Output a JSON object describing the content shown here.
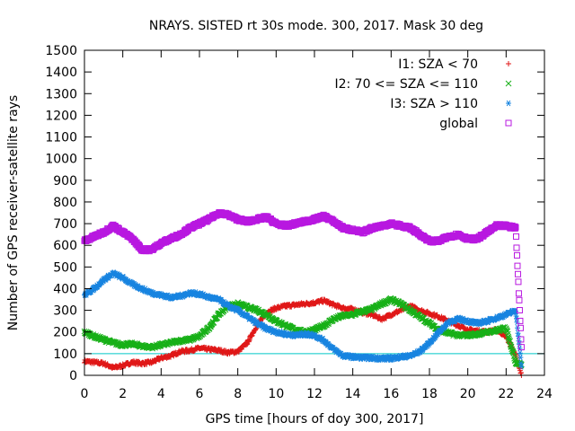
{
  "chart_data": {
    "type": "scatter",
    "title": "NRAYS. SISTED rt 30s mode. 300, 2017. Mask 30 deg",
    "xlabel": "GPS time [hours of doy 300, 2017]",
    "ylabel": "Number of GPS receiver-satellite rays",
    "xlim": [
      0,
      24
    ],
    "ylim": [
      0,
      1500
    ],
    "xticks": [
      "0",
      "2",
      "4",
      "6",
      "8",
      "10",
      "12",
      "14",
      "16",
      "18",
      "20",
      "22",
      "24"
    ],
    "yticks": [
      "0",
      "100",
      "200",
      "300",
      "400",
      "500",
      "600",
      "700",
      "800",
      "900",
      "1000",
      "1100",
      "1200",
      "1300",
      "1400",
      "1500"
    ],
    "grid": false,
    "legend_position": "top-right",
    "reference_line": {
      "y": 100,
      "color": "#00c8c8"
    },
    "series": [
      {
        "name": "I1: SZA < 70",
        "marker": "+",
        "color": "#e01818",
        "x": [
          0,
          0.5,
          1,
          1.5,
          2,
          2.5,
          3,
          3.5,
          4,
          4.5,
          5,
          5.5,
          6,
          6.5,
          7,
          7.5,
          8,
          8.5,
          9,
          9.5,
          10,
          10.5,
          11,
          11.5,
          12,
          12.5,
          13,
          13.5,
          14,
          14.5,
          15,
          15.5,
          16,
          16.5,
          17,
          17.5,
          18,
          18.5,
          19,
          19.5,
          20,
          20.5,
          21,
          21.5,
          22,
          22.5,
          22.8
        ],
        "y": [
          65,
          60,
          55,
          35,
          45,
          60,
          55,
          60,
          80,
          90,
          110,
          115,
          125,
          120,
          115,
          105,
          110,
          150,
          230,
          290,
          310,
          320,
          325,
          330,
          335,
          345,
          325,
          310,
          305,
          290,
          280,
          260,
          280,
          300,
          320,
          300,
          285,
          270,
          250,
          230,
          210,
          205,
          200,
          210,
          180,
          90,
          0
        ]
      },
      {
        "name": "I2: 70 <= SZA <= 110",
        "marker": "x",
        "color": "#18b018",
        "x": [
          0,
          0.5,
          1,
          1.5,
          2,
          2.5,
          3,
          3.5,
          4,
          4.5,
          5,
          5.5,
          6,
          6.5,
          7,
          7.5,
          8,
          8.5,
          9,
          9.5,
          10,
          10.5,
          11,
          11.5,
          12,
          12.5,
          13,
          13.5,
          14,
          14.5,
          15,
          15.5,
          16,
          16.5,
          17,
          17.5,
          18,
          18.5,
          19,
          19.5,
          20,
          20.5,
          21,
          21.5,
          22,
          22.5,
          22.8
        ],
        "y": [
          200,
          180,
          165,
          150,
          140,
          145,
          135,
          130,
          140,
          150,
          160,
          165,
          180,
          220,
          280,
          320,
          330,
          315,
          300,
          280,
          250,
          230,
          210,
          200,
          210,
          230,
          260,
          275,
          280,
          295,
          305,
          330,
          350,
          330,
          300,
          270,
          240,
          210,
          195,
          185,
          185,
          190,
          200,
          205,
          220,
          60,
          50
        ]
      },
      {
        "name": "I3: SZA > 110",
        "marker": "*",
        "color": "#1884e0",
        "x": [
          0,
          0.5,
          1,
          1.5,
          2,
          2.5,
          3,
          3.5,
          4,
          4.5,
          5,
          5.5,
          6,
          6.5,
          7,
          7.5,
          8,
          8.5,
          9,
          9.5,
          10,
          10.5,
          11,
          11.5,
          12,
          12.5,
          13,
          13.5,
          14,
          14.5,
          15,
          15.5,
          16,
          16.5,
          17,
          17.5,
          18,
          18.5,
          19,
          19.5,
          20,
          20.5,
          21,
          21.5,
          22,
          22.5,
          22.8
        ],
        "y": [
          370,
          400,
          440,
          470,
          450,
          420,
          400,
          380,
          370,
          360,
          365,
          380,
          375,
          360,
          350,
          320,
          300,
          270,
          240,
          215,
          200,
          190,
          185,
          190,
          185,
          160,
          120,
          90,
          85,
          82,
          80,
          78,
          78,
          85,
          90,
          110,
          150,
          200,
          245,
          260,
          250,
          240,
          250,
          265,
          280,
          300,
          40
        ]
      },
      {
        "name": "global",
        "marker": "square",
        "color": "#b818e0",
        "x": [
          0,
          0.5,
          1,
          1.5,
          2,
          2.5,
          3,
          3.5,
          4,
          4.5,
          5,
          5.5,
          6,
          6.5,
          7,
          7.5,
          8,
          8.5,
          9,
          9.5,
          10,
          10.5,
          11,
          11.5,
          12,
          12.5,
          13,
          13.5,
          14,
          14.5,
          15,
          15.5,
          16,
          16.5,
          17,
          17.5,
          18,
          18.5,
          19,
          19.5,
          20,
          20.5,
          21,
          21.5,
          22,
          22.5,
          22.8
        ],
        "y": [
          620,
          640,
          660,
          690,
          660,
          630,
          580,
          580,
          610,
          630,
          650,
          680,
          700,
          720,
          750,
          740,
          720,
          710,
          720,
          730,
          700,
          690,
          700,
          710,
          720,
          735,
          710,
          680,
          670,
          660,
          680,
          690,
          700,
          690,
          680,
          650,
          620,
          620,
          640,
          650,
          630,
          630,
          660,
          690,
          690,
          680,
          130
        ]
      }
    ]
  }
}
